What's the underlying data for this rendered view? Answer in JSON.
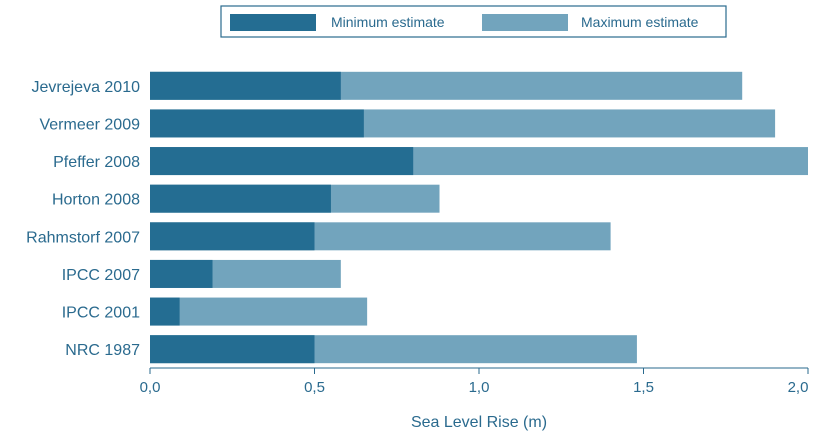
{
  "chart_data": {
    "type": "bar",
    "orientation": "horizontal",
    "stacked_overlay": true,
    "categories": [
      "Jevrejeva 2010",
      "Vermeer 2009",
      "Pfeffer 2008",
      "Horton 2008",
      "Rahmstorf 2007",
      "IPCC 2007",
      "IPCC 2001",
      "NRC 1987"
    ],
    "series": [
      {
        "name": "Minimum estimate",
        "color": "#246d92",
        "values": [
          0.58,
          0.65,
          0.8,
          0.55,
          0.5,
          0.19,
          0.09,
          0.5
        ]
      },
      {
        "name": "Maximum estimate",
        "color": "#72a4bd",
        "values": [
          1.8,
          1.9,
          2.0,
          0.88,
          1.4,
          0.58,
          0.66,
          1.48
        ]
      }
    ],
    "xlabel": "Sea Level Rise (m)",
    "ylabel": "",
    "title": "",
    "xlim": [
      0,
      2.0
    ],
    "xticks": [
      0,
      0.5,
      1.0,
      1.5,
      2.0
    ],
    "xtick_labels": [
      "0,0",
      "0,5",
      "1,0",
      "1,5",
      "2,0"
    ],
    "legend_position": "top",
    "grid": false
  }
}
